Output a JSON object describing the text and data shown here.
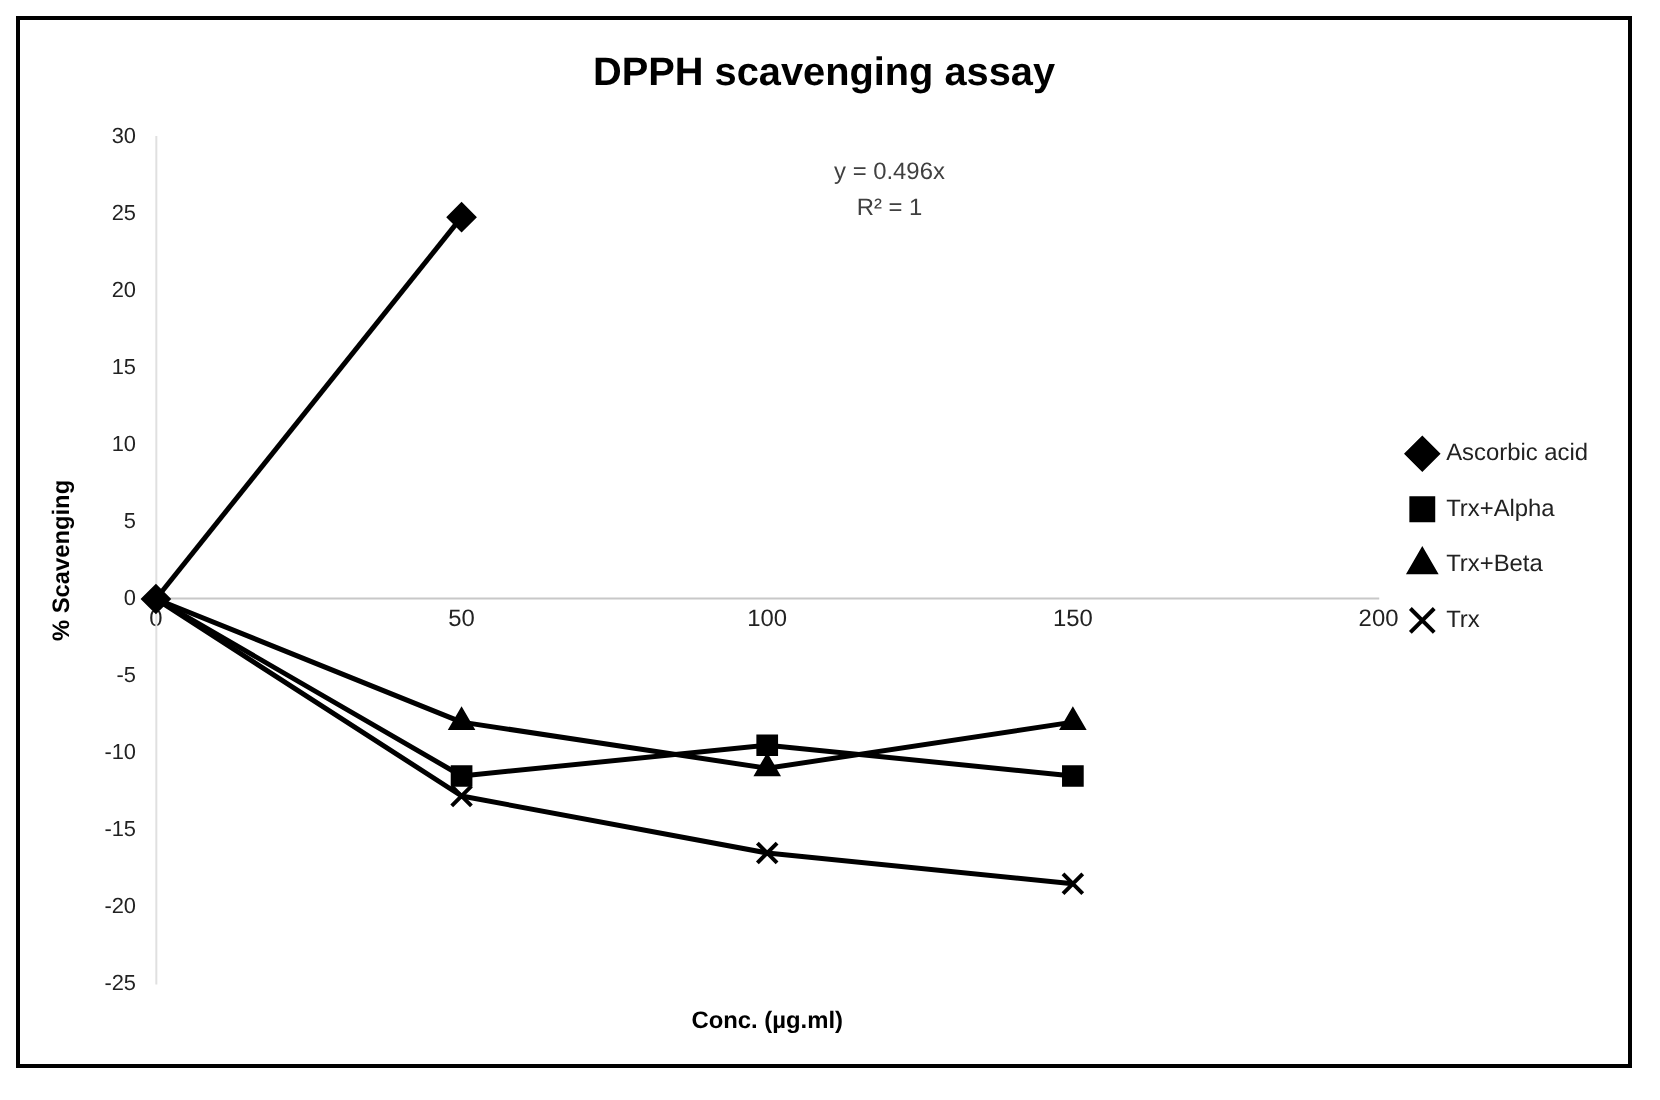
{
  "chart_data": {
    "type": "line",
    "title": "DPPH scavenging assay",
    "xlabel": "Conc. (µg.ml)",
    "ylabel": "% Scavenging",
    "x": [
      0,
      50,
      100,
      150
    ],
    "series": [
      {
        "name": "Ascorbic acid",
        "color": "#000000",
        "marker": "diamond",
        "x": [
          0,
          50
        ],
        "values": [
          0,
          24.8
        ]
      },
      {
        "name": "Trx+Alpha",
        "color": "#000000",
        "marker": "square",
        "values": [
          0,
          -11.5,
          -9.5,
          -11.5
        ]
      },
      {
        "name": "Trx+Beta",
        "color": "#000000",
        "marker": "triangle",
        "values": [
          0,
          -8,
          -11,
          -8
        ]
      },
      {
        "name": "Trx",
        "color": "#000000",
        "marker": "cross",
        "values": [
          0,
          -12.8,
          -16.5,
          -18.5
        ]
      }
    ],
    "annotations": [
      "y = 0.496x",
      "R² = 1"
    ],
    "xlim": [
      0,
      200
    ],
    "xticks": [
      0,
      50,
      100,
      150,
      200
    ],
    "ylim": [
      -25,
      30
    ],
    "yticks": [
      -25,
      -20,
      -15,
      -10,
      -5,
      0,
      5,
      10,
      15,
      20,
      25,
      30
    ],
    "grid": false,
    "legend": "right",
    "line_style": "solid"
  }
}
